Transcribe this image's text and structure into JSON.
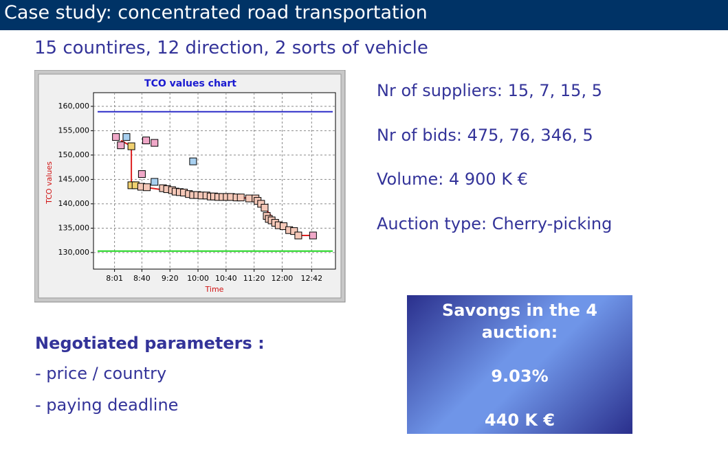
{
  "header": {
    "title": "Case study: concentrated road transportation"
  },
  "subtitle": "15 countires, 12 direction, 2 sorts of vehicle",
  "chart_data": {
    "type": "scatter",
    "title": "TCO values chart",
    "x_label": "Time",
    "y_label": "TCO values",
    "xlim": [
      451,
      796
    ],
    "ylim": [
      126600,
      162800
    ],
    "xticks": [
      {
        "value": 481,
        "label": "8:01"
      },
      {
        "value": 520,
        "label": "8:40"
      },
      {
        "value": 560,
        "label": "9:20"
      },
      {
        "value": 600,
        "label": "10:00"
      },
      {
        "value": 640,
        "label": "10:40"
      },
      {
        "value": 680,
        "label": "11:20"
      },
      {
        "value": 720,
        "label": "12:00"
      },
      {
        "value": 762,
        "label": "12:42"
      }
    ],
    "yticks": [
      {
        "value": 130000,
        "label": "130,000"
      },
      {
        "value": 135000,
        "label": "135,000"
      },
      {
        "value": 140000,
        "label": "140,000"
      },
      {
        "value": 145000,
        "label": "145,000"
      },
      {
        "value": 150000,
        "label": "150,000"
      },
      {
        "value": 155000,
        "label": "155,000"
      },
      {
        "value": 160000,
        "label": "160,000"
      }
    ],
    "grid": true,
    "reference_lines": [
      {
        "value": 158900,
        "color": "#2b2bc8"
      },
      {
        "value": 130300,
        "color": "#1ed61e"
      }
    ],
    "series": [
      {
        "mode": "line",
        "color": "#dd2020",
        "x": [
          490,
          505,
          505,
          519,
          568,
          623,
          682,
          695,
          715,
          737,
          743,
          764
        ],
        "values": [
          153000,
          151800,
          143800,
          143500,
          142500,
          141500,
          141100,
          139200,
          135600,
          134400,
          133500,
          133500
        ]
      },
      {
        "mode": "markers",
        "color": "#f0a8c8",
        "x": [
          483,
          490,
          526,
          538,
          520,
          764
        ],
        "values": [
          153700,
          152000,
          153000,
          152500,
          146100,
          133500
        ]
      },
      {
        "mode": "markers",
        "color": "#a8d0f0",
        "x": [
          498,
          538,
          593
        ],
        "values": [
          153700,
          144500,
          148700
        ]
      },
      {
        "mode": "markers",
        "color": "#f0d070",
        "x": [
          505,
          505,
          511
        ],
        "values": [
          151800,
          143800,
          143800
        ]
      },
      {
        "mode": "markers",
        "color": "#f5c8b8",
        "x": [
          519,
          527,
          550,
          556,
          563,
          568,
          574,
          580,
          587,
          593,
          599,
          605,
          612,
          618,
          623,
          629,
          635,
          641,
          647,
          655,
          661,
          673,
          682,
          685,
          690,
          695,
          698,
          701,
          705,
          710,
          715,
          722,
          730,
          737,
          743
        ],
        "values": [
          143500,
          143400,
          143200,
          143000,
          142800,
          142500,
          142400,
          142300,
          142000,
          141800,
          141800,
          141700,
          141700,
          141500,
          141500,
          141400,
          141400,
          141400,
          141400,
          141300,
          141300,
          141100,
          141100,
          140600,
          140000,
          139200,
          137500,
          136900,
          136600,
          136100,
          135600,
          135400,
          134600,
          134400,
          133500
        ]
      }
    ]
  },
  "facts": [
    "Nr of suppliers: 15, 7, 15, 5",
    "Nr of bids: 475, 76, 346, 5",
    "Volume: 4 900 K €",
    "Auction type: Cherry-picking"
  ],
  "parameters": {
    "heading": "Negotiated parameters :",
    "items": [
      "- price / country",
      "- paying deadline"
    ]
  },
  "savings": [
    "Savongs in the 4 auction:",
    "9.03%",
    "440 K €"
  ]
}
